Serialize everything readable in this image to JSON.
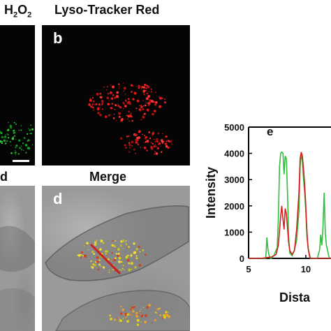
{
  "labels": {
    "h2o2": "H",
    "h2o2_sub": "2",
    "h2o2_o": "O",
    "h2o2_sub2": "2",
    "lyso": "Lyso-Tracker Red",
    "bright_partial": "d",
    "merge": "Merge"
  },
  "panels": {
    "b": "b",
    "d": "d",
    "e": "e"
  },
  "colors": {
    "green_series": "#2fbf3a",
    "red_series": "#d42020",
    "line_marker": "#d01c1c"
  },
  "chart_data": {
    "type": "line",
    "title": "",
    "ylabel": "Intensity",
    "xlabel": "Dista",
    "ylim": [
      0,
      5000
    ],
    "xlim": [
      5,
      12.2
    ],
    "yticks": [
      "0",
      "1000",
      "2000",
      "3000",
      "4000",
      "5000"
    ],
    "xticks": [
      "5",
      "10"
    ],
    "panel_letter": "e",
    "series": [
      {
        "color": "#2fbf3a",
        "x": [
          5.0,
          6.0,
          6.5,
          6.6,
          6.7,
          6.8,
          6.9,
          7.0,
          7.2,
          7.4,
          7.5,
          7.6,
          7.7,
          7.8,
          7.9,
          8.0,
          8.1,
          8.2,
          8.3,
          8.4,
          8.5,
          8.6,
          8.8,
          9.0,
          9.2,
          9.4,
          9.5,
          9.6,
          9.7,
          9.8,
          9.9,
          10.0,
          10.1,
          10.2,
          10.3,
          10.4,
          10.5,
          10.6,
          10.8,
          11.0,
          11.2,
          11.3,
          11.4,
          11.5,
          11.6,
          11.7,
          11.8,
          11.9,
          12.0,
          12.1,
          12.2
        ],
        "y": [
          0,
          0,
          0,
          800,
          300,
          100,
          0,
          0,
          100,
          300,
          400,
          1500,
          3500,
          4000,
          4050,
          4000,
          3200,
          3900,
          3800,
          2500,
          800,
          200,
          100,
          300,
          700,
          1800,
          3500,
          4000,
          3700,
          3000,
          2500,
          1800,
          800,
          400,
          200,
          0,
          0,
          0,
          0,
          0,
          300,
          900,
          500,
          1200,
          2500,
          1000,
          500,
          300,
          100,
          0,
          0
        ]
      },
      {
        "color": "#d42020",
        "x": [
          5.0,
          6.0,
          7.0,
          7.4,
          7.6,
          7.8,
          7.9,
          8.0,
          8.1,
          8.2,
          8.3,
          8.5,
          8.6,
          8.8,
          9.0,
          9.2,
          9.4,
          9.5,
          9.6,
          9.7,
          9.8,
          9.9,
          10.0,
          10.1,
          10.2,
          10.3,
          10.4,
          10.6,
          10.8,
          11.0,
          11.2,
          11.5,
          12.0,
          12.2
        ],
        "y": [
          0,
          0,
          50,
          150,
          500,
          1600,
          2000,
          1500,
          1100,
          1900,
          1700,
          600,
          300,
          150,
          300,
          1100,
          2500,
          3800,
          4050,
          3900,
          3400,
          2800,
          2000,
          1000,
          400,
          100,
          0,
          0,
          0,
          0,
          0,
          0,
          0,
          0
        ]
      }
    ]
  }
}
